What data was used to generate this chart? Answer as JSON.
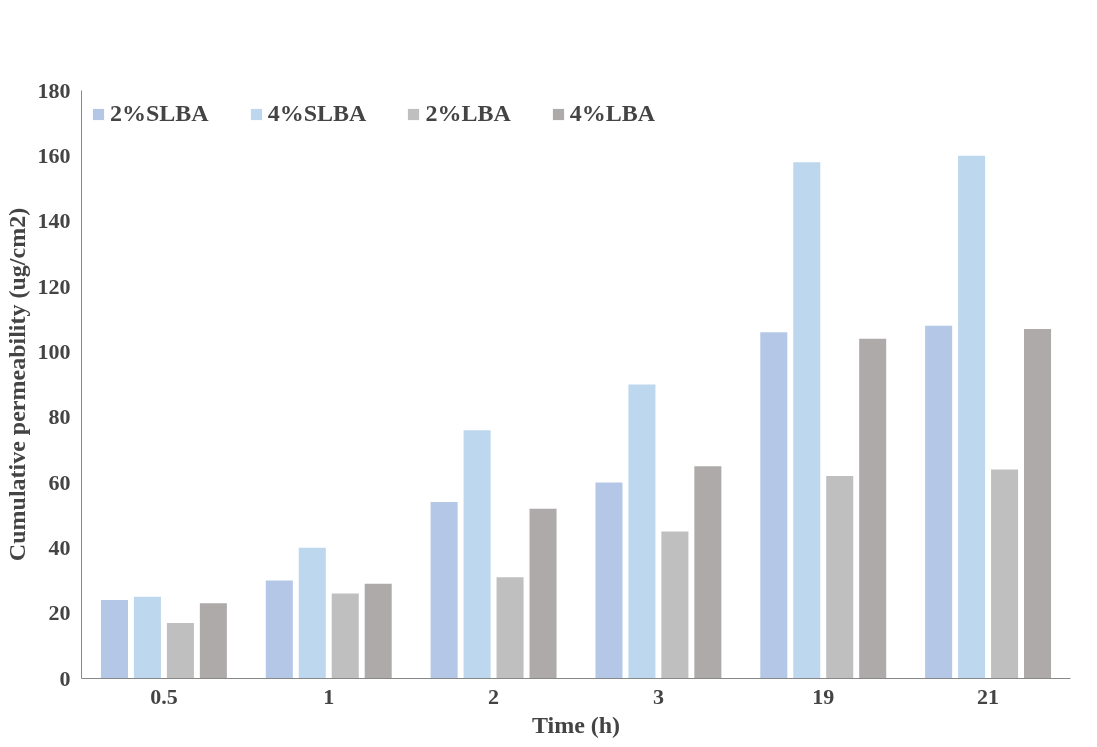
{
  "chart_data": {
    "type": "bar",
    "xlabel": "Time (h)",
    "ylabel": "Cumulative permeability (ug/cm2)",
    "categories": [
      "0.5",
      "1",
      "2",
      "3",
      "19",
      "21"
    ],
    "series": [
      {
        "name": "2%SLBA",
        "color": "#b4c7e7",
        "values": [
          24,
          30,
          54,
          60,
          106,
          108
        ]
      },
      {
        "name": "4%SLBA",
        "color": "#bdd7ee",
        "values": [
          25,
          40,
          76,
          90,
          158,
          160
        ]
      },
      {
        "name": "2%LBA",
        "color": "#bfbfbf",
        "values": [
          17,
          26,
          31,
          45,
          62,
          64
        ]
      },
      {
        "name": "4%LBA",
        "color": "#aeaaaa",
        "values": [
          23,
          29,
          52,
          65,
          104,
          107
        ]
      }
    ],
    "ylim": [
      0,
      180
    ],
    "yticks": [
      0,
      20,
      40,
      60,
      80,
      100,
      120,
      140,
      160,
      180
    ],
    "grid": false,
    "legend": "top left"
  }
}
